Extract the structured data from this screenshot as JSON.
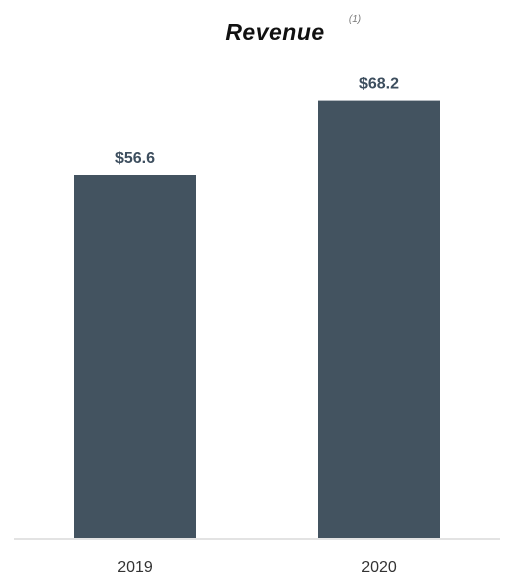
{
  "chart_data": {
    "type": "bar",
    "title": "Revenue",
    "title_footnote": "(1)",
    "categories": [
      "2019",
      "2020"
    ],
    "values": [
      56.6,
      68.2
    ],
    "value_labels": [
      "$56.6",
      "$68.2"
    ],
    "xlabel": "",
    "ylabel": "",
    "ylim": [
      0,
      75
    ],
    "grid": false,
    "legend": "none"
  },
  "colors": {
    "bar": "#435360",
    "value_label": "#3d4e5e",
    "baseline": "#e3e3e3"
  }
}
